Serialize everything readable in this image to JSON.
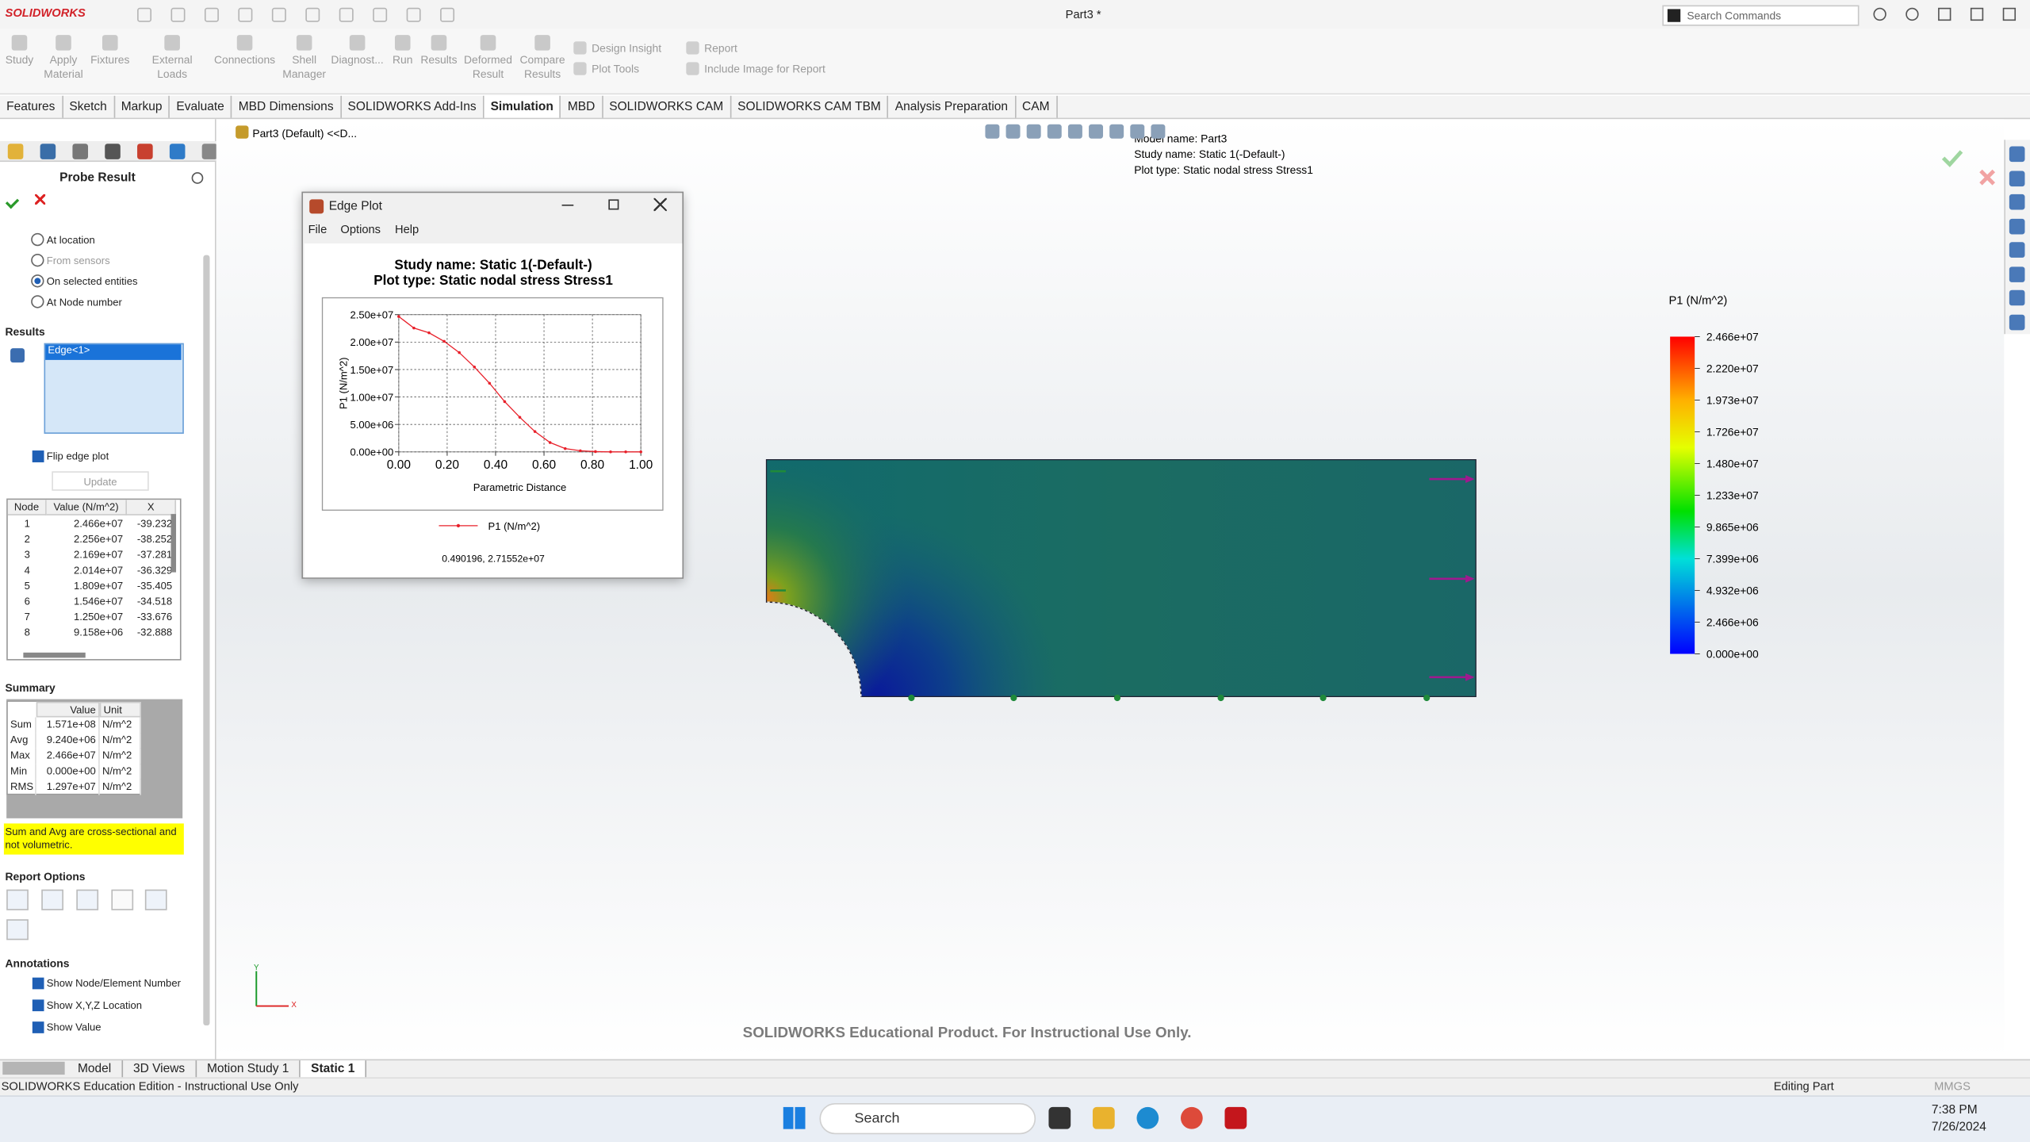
{
  "app": {
    "brand": "SOLIDWORKS",
    "title": "Part3 *",
    "search_placeholder": "Search Commands"
  },
  "ribbon": {
    "commands": [
      "Study",
      "Apply Material",
      "Fixtures",
      "External Loads",
      "Connections",
      "Shell Manager",
      "Diagnost...",
      "Run",
      "Results",
      "Deformed Result",
      "Compare Results"
    ],
    "small_commands": [
      "Design Insight",
      "Plot Tools",
      "Report",
      "Include Image for Report"
    ]
  },
  "tabs": [
    "Features",
    "Sketch",
    "Markup",
    "Evaluate",
    "MBD Dimensions",
    "SOLIDWORKS Add-Ins",
    "Simulation",
    "MBD",
    "SOLIDWORKS CAM",
    "SOLIDWORKS CAM TBM",
    "Analysis Preparation",
    "CAM"
  ],
  "active_tab": "Simulation",
  "tree_path": "Part3 (Default) <<D...",
  "probe": {
    "title": "Probe Result",
    "options": [
      "At location",
      "From sensors",
      "On selected entities",
      "At Node number"
    ],
    "results_header": "Results",
    "selected": "Edge<1>",
    "flip": "Flip edge plot",
    "update": "Update",
    "table": {
      "header": [
        "Node",
        "Value (N/m^2)",
        "X"
      ],
      "rows": [
        [
          "1",
          "2.466e+07",
          "-39.232"
        ],
        [
          "2",
          "2.256e+07",
          "-38.252"
        ],
        [
          "3",
          "2.169e+07",
          "-37.281"
        ],
        [
          "4",
          "2.014e+07",
          "-36.329"
        ],
        [
          "5",
          "1.809e+07",
          "-35.405"
        ],
        [
          "6",
          "1.546e+07",
          "-34.518"
        ],
        [
          "7",
          "1.250e+07",
          "-33.676"
        ],
        [
          "8",
          "9.158e+06",
          "-32.888"
        ]
      ]
    },
    "summary_header": "Summary",
    "summary": {
      "header": [
        "Value",
        "Unit"
      ],
      "rows": [
        [
          "Sum",
          "1.571e+08",
          "N/m^2"
        ],
        [
          "Avg",
          "9.240e+06",
          "N/m^2"
        ],
        [
          "Max",
          "2.466e+07",
          "N/m^2"
        ],
        [
          "Min",
          "0.000e+00",
          "N/m^2"
        ],
        [
          "RMS",
          "1.297e+07",
          "N/m^2"
        ]
      ]
    },
    "note": "Sum and Avg are cross-sectional and not volumetric.",
    "report_header": "Report Options",
    "annotations_header": "Annotations",
    "annotations": [
      "Show Node/Element Number",
      "Show X,Y,Z Location",
      "Show Value"
    ]
  },
  "edge_plot": {
    "window_title": "Edge Plot",
    "menu": [
      "File",
      "Options",
      "Help"
    ],
    "chart_data": {
      "type": "line",
      "title": "Study name: Static 1(-Default-)",
      "subtitle": "Plot type: Static nodal stress Stress1",
      "x_label": "Parametric Distance",
      "y_label": "P1 (N/m^2)",
      "x": [
        0,
        0.0625,
        0.125,
        0.1875,
        0.25,
        0.3125,
        0.375,
        0.4375,
        0.5,
        0.5625,
        0.625,
        0.6875,
        0.75,
        0.8125,
        0.875,
        0.9375,
        1
      ],
      "series": [
        {
          "name": "P1 (N/m^2)",
          "color": "#e8202a",
          "values": [
            24660000,
            22560000,
            21690000,
            20140000,
            18090000,
            15460000,
            12500000,
            9158000,
            6300000,
            3700000,
            1700000,
            600000,
            200000,
            50000,
            0,
            0,
            0
          ]
        }
      ],
      "xlim": [
        0,
        1
      ],
      "ylim": [
        0,
        25000000
      ],
      "xticks": [
        {
          "value": 0,
          "label": "0.00"
        },
        {
          "value": 0.2,
          "label": "0.20"
        },
        {
          "value": 0.4,
          "label": "0.40"
        },
        {
          "value": 0.6,
          "label": "0.60"
        },
        {
          "value": 0.8,
          "label": "0.80"
        },
        {
          "value": 1,
          "label": "1.00"
        }
      ],
      "yticks": [
        {
          "value": 0,
          "label": "0.00e+00"
        },
        {
          "value": 5000000,
          "label": "5.00e+06"
        },
        {
          "value": 10000000,
          "label": "1.00e+07"
        },
        {
          "value": 15000000,
          "label": "1.50e+07"
        },
        {
          "value": 20000000,
          "label": "2.00e+07"
        },
        {
          "value": 25000000,
          "label": "2.50e+07"
        }
      ],
      "grid": true,
      "readout": "0.490196, 2.71552e+07"
    }
  },
  "model_info": [
    "Model name: Part3",
    "Study name: Static 1(-Default-)",
    "Plot type: Static nodal stress Stress1"
  ],
  "legend": {
    "title": "P1 (N/m^2)",
    "labels": [
      "2.466e+07",
      "2.220e+07",
      "1.973e+07",
      "1.726e+07",
      "1.480e+07",
      "1.233e+07",
      "9.865e+06",
      "7.399e+06",
      "4.932e+06",
      "2.466e+06",
      "0.000e+00"
    ]
  },
  "triad": [
    "Y",
    "X"
  ],
  "watermark": "SOLIDWORKS Educational Product. For Instructional Use Only.",
  "bottom_tabs": [
    "Model",
    "3D Views",
    "Motion Study 1",
    "Static 1"
  ],
  "status": {
    "left": "SOLIDWORKS Education Edition - Instructional Use Only",
    "mode": "Editing Part",
    "units": "MMGS"
  },
  "taskbar": {
    "search": "Search",
    "time": "7:38 PM",
    "date": "7/26/2024"
  }
}
